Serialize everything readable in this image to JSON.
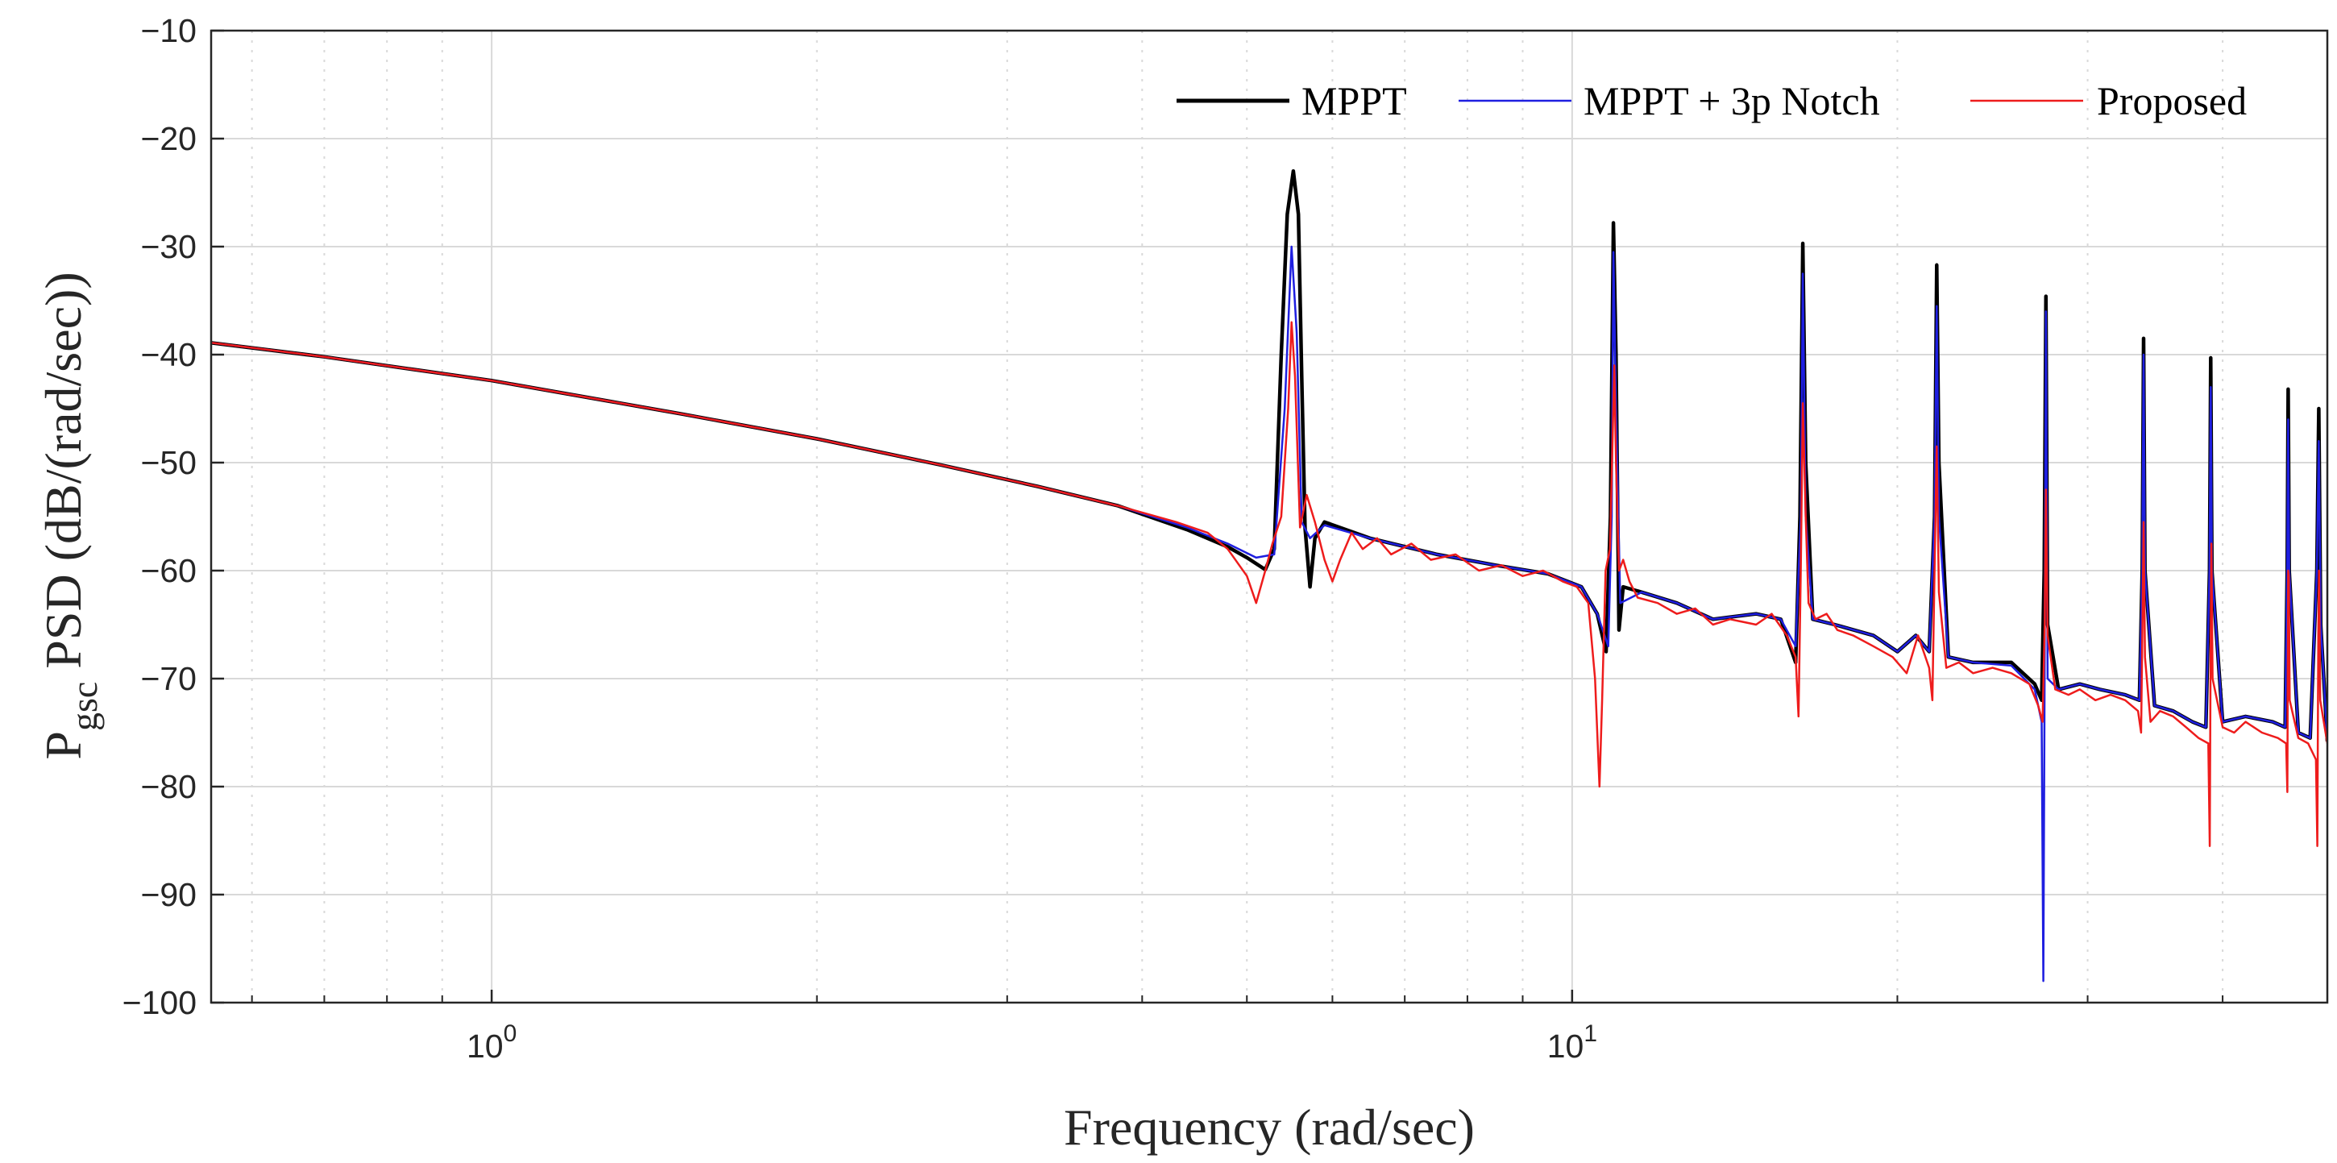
{
  "chart_data": {
    "type": "line",
    "title": "",
    "xlabel": "Frequency (rad/sec)",
    "ylabel": {
      "main": "P",
      "subscript": "gsc",
      "unit": " PSD (dB/(rad/sec))"
    },
    "xscale": "log",
    "xlim": [
      0.55,
      50
    ],
    "ylim": [
      -100,
      -10
    ],
    "grid": true,
    "x_ticks": [
      {
        "value": 1,
        "base": "10",
        "exp": "0"
      },
      {
        "value": 10,
        "base": "10",
        "exp": "1"
      }
    ],
    "y_ticks": [
      {
        "value": -10,
        "label": "−10"
      },
      {
        "value": -20,
        "label": "−20"
      },
      {
        "value": -30,
        "label": "−30"
      },
      {
        "value": -40,
        "label": "−40"
      },
      {
        "value": -50,
        "label": "−50"
      },
      {
        "value": -60,
        "label": "−60"
      },
      {
        "value": -70,
        "label": "−70"
      },
      {
        "value": -80,
        "label": "−80"
      },
      {
        "value": -90,
        "label": "−90"
      },
      {
        "value": -100,
        "label": "−100"
      }
    ],
    "legend_position": "top-right",
    "series": [
      {
        "name": "MPPT",
        "color": "#000000",
        "points": [
          [
            0.55,
            -38.9
          ],
          [
            0.7,
            -40.2
          ],
          [
            1.0,
            -42.4
          ],
          [
            1.5,
            -45.5
          ],
          [
            2.0,
            -47.8
          ],
          [
            2.6,
            -50.2
          ],
          [
            3.2,
            -52.2
          ],
          [
            3.8,
            -54.0
          ],
          [
            4.4,
            -56.2
          ],
          [
            4.8,
            -57.8
          ],
          [
            5.0,
            -58.8
          ],
          [
            5.2,
            -59.9
          ],
          [
            5.3,
            -58.0
          ],
          [
            5.38,
            -40.0
          ],
          [
            5.45,
            -27.0
          ],
          [
            5.52,
            -23.0
          ],
          [
            5.58,
            -27.0
          ],
          [
            5.62,
            -42.0
          ],
          [
            5.66,
            -56.0
          ],
          [
            5.72,
            -61.5
          ],
          [
            5.78,
            -57.0
          ],
          [
            5.9,
            -55.5
          ],
          [
            6.5,
            -57.0
          ],
          [
            7.5,
            -58.5
          ],
          [
            8.5,
            -59.5
          ],
          [
            9.5,
            -60.3
          ],
          [
            10.2,
            -61.5
          ],
          [
            10.55,
            -64.0
          ],
          [
            10.75,
            -67.5
          ],
          [
            10.85,
            -55.0
          ],
          [
            10.92,
            -27.8
          ],
          [
            10.98,
            -40.0
          ],
          [
            11.05,
            -65.5
          ],
          [
            11.15,
            -61.5
          ],
          [
            11.6,
            -62.0
          ],
          [
            12.5,
            -63.0
          ],
          [
            13.5,
            -64.5
          ],
          [
            14.8,
            -64.0
          ],
          [
            15.6,
            -64.5
          ],
          [
            16.1,
            -68.5
          ],
          [
            16.25,
            -55.0
          ],
          [
            16.35,
            -29.7
          ],
          [
            16.45,
            -50.0
          ],
          [
            16.7,
            -64.5
          ],
          [
            17.5,
            -65.0
          ],
          [
            19.0,
            -66.0
          ],
          [
            20.0,
            -67.5
          ],
          [
            20.8,
            -66.0
          ],
          [
            21.4,
            -67.5
          ],
          [
            21.65,
            -55.0
          ],
          [
            21.75,
            -31.7
          ],
          [
            21.85,
            -50.0
          ],
          [
            22.3,
            -68.0
          ],
          [
            23.5,
            -68.5
          ],
          [
            25.5,
            -68.5
          ],
          [
            26.8,
            -70.5
          ],
          [
            27.2,
            -72.0
          ],
          [
            27.35,
            -60.0
          ],
          [
            27.45,
            -34.6
          ],
          [
            27.55,
            -65.0
          ],
          [
            28.2,
            -71.0
          ],
          [
            29.5,
            -70.5
          ],
          [
            30.8,
            -71.0
          ],
          [
            32.5,
            -71.5
          ],
          [
            33.5,
            -72.0
          ],
          [
            33.7,
            -60.0
          ],
          [
            33.8,
            -38.5
          ],
          [
            33.9,
            -60.0
          ],
          [
            34.6,
            -72.5
          ],
          [
            36.0,
            -73.0
          ],
          [
            37.5,
            -74.0
          ],
          [
            38.6,
            -74.5
          ],
          [
            38.9,
            -60.0
          ],
          [
            39.0,
            -40.3
          ],
          [
            39.1,
            -60.0
          ],
          [
            40.0,
            -74.0
          ],
          [
            42.0,
            -73.5
          ],
          [
            44.5,
            -74.0
          ],
          [
            45.7,
            -74.5
          ],
          [
            45.9,
            -60.0
          ],
          [
            46.0,
            -43.2
          ],
          [
            46.1,
            -60.0
          ],
          [
            47.0,
            -75.0
          ],
          [
            48.2,
            -75.5
          ],
          [
            48.9,
            -60.0
          ],
          [
            49.1,
            -45.0
          ],
          [
            49.3,
            -65.0
          ],
          [
            50.0,
            -75.8
          ]
        ]
      },
      {
        "name": "MPPT + 3p Notch",
        "color": "#1f1fe0",
        "points": [
          [
            0.55,
            -38.9
          ],
          [
            0.7,
            -40.2
          ],
          [
            1.0,
            -42.4
          ],
          [
            1.5,
            -45.5
          ],
          [
            2.0,
            -47.8
          ],
          [
            2.6,
            -50.2
          ],
          [
            3.2,
            -52.2
          ],
          [
            3.8,
            -54.0
          ],
          [
            4.4,
            -56.0
          ],
          [
            4.8,
            -57.5
          ],
          [
            5.1,
            -58.8
          ],
          [
            5.3,
            -58.5
          ],
          [
            5.42,
            -45.0
          ],
          [
            5.5,
            -30.0
          ],
          [
            5.56,
            -38.0
          ],
          [
            5.62,
            -55.5
          ],
          [
            5.72,
            -57.0
          ],
          [
            5.9,
            -55.8
          ],
          [
            6.5,
            -57.0
          ],
          [
            7.5,
            -58.5
          ],
          [
            8.5,
            -59.5
          ],
          [
            9.5,
            -60.3
          ],
          [
            10.2,
            -61.5
          ],
          [
            10.55,
            -64.0
          ],
          [
            10.8,
            -67.0
          ],
          [
            10.88,
            -55.0
          ],
          [
            10.92,
            -30.5
          ],
          [
            10.98,
            -45.0
          ],
          [
            11.08,
            -63.0
          ],
          [
            11.6,
            -62.0
          ],
          [
            12.5,
            -63.0
          ],
          [
            13.5,
            -64.5
          ],
          [
            14.8,
            -64.0
          ],
          [
            15.6,
            -64.5
          ],
          [
            16.1,
            -67.0
          ],
          [
            16.28,
            -55.0
          ],
          [
            16.35,
            -32.5
          ],
          [
            16.45,
            -55.0
          ],
          [
            16.7,
            -64.5
          ],
          [
            17.5,
            -65.0
          ],
          [
            19.0,
            -66.0
          ],
          [
            20.0,
            -67.5
          ],
          [
            20.8,
            -66.0
          ],
          [
            21.4,
            -67.5
          ],
          [
            21.65,
            -55.0
          ],
          [
            21.75,
            -35.5
          ],
          [
            21.85,
            -55.0
          ],
          [
            22.3,
            -68.0
          ],
          [
            23.5,
            -68.5
          ],
          [
            25.5,
            -68.8
          ],
          [
            26.8,
            -71.0
          ],
          [
            27.2,
            -74.0
          ],
          [
            27.3,
            -98.0
          ],
          [
            27.36,
            -75.0
          ],
          [
            27.45,
            -36.0
          ],
          [
            27.55,
            -70.0
          ],
          [
            28.2,
            -71.0
          ],
          [
            29.5,
            -70.5
          ],
          [
            30.8,
            -71.0
          ],
          [
            32.5,
            -71.5
          ],
          [
            33.5,
            -72.0
          ],
          [
            33.7,
            -60.0
          ],
          [
            33.8,
            -40.0
          ],
          [
            33.9,
            -60.0
          ],
          [
            34.6,
            -72.5
          ],
          [
            36.0,
            -73.0
          ],
          [
            37.5,
            -74.0
          ],
          [
            38.6,
            -74.5
          ],
          [
            38.9,
            -60.0
          ],
          [
            39.0,
            -43.0
          ],
          [
            39.1,
            -60.0
          ],
          [
            40.0,
            -74.0
          ],
          [
            42.0,
            -73.5
          ],
          [
            44.5,
            -74.0
          ],
          [
            45.7,
            -74.5
          ],
          [
            45.9,
            -60.0
          ],
          [
            46.0,
            -46.0
          ],
          [
            46.1,
            -60.0
          ],
          [
            47.0,
            -75.0
          ],
          [
            48.2,
            -75.5
          ],
          [
            48.9,
            -60.0
          ],
          [
            49.1,
            -48.0
          ],
          [
            49.3,
            -65.0
          ],
          [
            50.0,
            -75.8
          ]
        ]
      },
      {
        "name": "Proposed",
        "color": "#ee1c1c",
        "points": [
          [
            0.55,
            -38.9
          ],
          [
            0.7,
            -40.2
          ],
          [
            1.0,
            -42.4
          ],
          [
            1.5,
            -45.5
          ],
          [
            2.0,
            -47.8
          ],
          [
            2.6,
            -50.2
          ],
          [
            3.2,
            -52.2
          ],
          [
            3.8,
            -54.0
          ],
          [
            4.3,
            -55.5
          ],
          [
            4.6,
            -56.5
          ],
          [
            4.8,
            -58.0
          ],
          [
            5.0,
            -60.5
          ],
          [
            5.1,
            -63.0
          ],
          [
            5.2,
            -60.0
          ],
          [
            5.28,
            -57.5
          ],
          [
            5.38,
            -55.0
          ],
          [
            5.46,
            -45.0
          ],
          [
            5.5,
            -37.0
          ],
          [
            5.54,
            -42.0
          ],
          [
            5.6,
            -56.0
          ],
          [
            5.68,
            -53.0
          ],
          [
            5.78,
            -55.5
          ],
          [
            5.9,
            -59.0
          ],
          [
            6.0,
            -61.0
          ],
          [
            6.1,
            -59.0
          ],
          [
            6.25,
            -56.5
          ],
          [
            6.4,
            -58.0
          ],
          [
            6.6,
            -57.0
          ],
          [
            6.8,
            -58.5
          ],
          [
            7.1,
            -57.5
          ],
          [
            7.4,
            -59.0
          ],
          [
            7.8,
            -58.5
          ],
          [
            8.2,
            -60.0
          ],
          [
            8.6,
            -59.5
          ],
          [
            9.0,
            -60.5
          ],
          [
            9.4,
            -60.0
          ],
          [
            9.8,
            -61.0
          ],
          [
            10.1,
            -61.5
          ],
          [
            10.35,
            -63.0
          ],
          [
            10.5,
            -70.0
          ],
          [
            10.6,
            -80.0
          ],
          [
            10.66,
            -72.0
          ],
          [
            10.74,
            -60.0
          ],
          [
            10.84,
            -58.0
          ],
          [
            10.9,
            -48.0
          ],
          [
            10.94,
            -41.0
          ],
          [
            10.98,
            -50.0
          ],
          [
            11.05,
            -60.0
          ],
          [
            11.15,
            -59.0
          ],
          [
            11.3,
            -61.0
          ],
          [
            11.5,
            -62.5
          ],
          [
            12.0,
            -63.0
          ],
          [
            12.5,
            -64.0
          ],
          [
            13.0,
            -63.5
          ],
          [
            13.5,
            -65.0
          ],
          [
            14.0,
            -64.5
          ],
          [
            14.8,
            -65.0
          ],
          [
            15.3,
            -64.0
          ],
          [
            15.8,
            -66.0
          ],
          [
            16.1,
            -68.0
          ],
          [
            16.2,
            -73.5
          ],
          [
            16.28,
            -60.0
          ],
          [
            16.35,
            -44.5
          ],
          [
            16.45,
            -55.0
          ],
          [
            16.55,
            -63.0
          ],
          [
            16.8,
            -64.5
          ],
          [
            17.2,
            -64.0
          ],
          [
            17.6,
            -65.5
          ],
          [
            18.2,
            -66.0
          ],
          [
            19.0,
            -67.0
          ],
          [
            19.8,
            -68.0
          ],
          [
            20.4,
            -69.5
          ],
          [
            20.9,
            -66.0
          ],
          [
            21.4,
            -69.0
          ],
          [
            21.55,
            -72.0
          ],
          [
            21.65,
            -60.0
          ],
          [
            21.75,
            -48.5
          ],
          [
            21.85,
            -62.0
          ],
          [
            22.2,
            -69.0
          ],
          [
            22.8,
            -68.5
          ],
          [
            23.5,
            -69.5
          ],
          [
            24.5,
            -69.0
          ],
          [
            25.5,
            -69.5
          ],
          [
            26.5,
            -70.5
          ],
          [
            27.0,
            -72.5
          ],
          [
            27.25,
            -74.0
          ],
          [
            27.38,
            -65.0
          ],
          [
            27.45,
            -52.5
          ],
          [
            27.55,
            -66.0
          ],
          [
            28.0,
            -71.0
          ],
          [
            28.8,
            -71.5
          ],
          [
            29.5,
            -71.0
          ],
          [
            30.5,
            -72.0
          ],
          [
            31.5,
            -71.5
          ],
          [
            32.5,
            -72.0
          ],
          [
            33.4,
            -73.0
          ],
          [
            33.62,
            -75.0
          ],
          [
            33.72,
            -65.0
          ],
          [
            33.8,
            -55.5
          ],
          [
            33.9,
            -68.0
          ],
          [
            34.3,
            -74.0
          ],
          [
            35.0,
            -73.0
          ],
          [
            36.0,
            -73.5
          ],
          [
            37.0,
            -74.5
          ],
          [
            38.0,
            -75.5
          ],
          [
            38.8,
            -76.0
          ],
          [
            38.92,
            -85.5
          ],
          [
            38.98,
            -70.0
          ],
          [
            39.05,
            -57.5
          ],
          [
            39.15,
            -70.0
          ],
          [
            40.0,
            -74.5
          ],
          [
            41.0,
            -75.0
          ],
          [
            42.0,
            -74.0
          ],
          [
            43.5,
            -75.0
          ],
          [
            45.0,
            -75.5
          ],
          [
            45.8,
            -76.0
          ],
          [
            45.92,
            -80.5
          ],
          [
            46.0,
            -60.0
          ],
          [
            46.06,
            -60.5
          ],
          [
            46.15,
            -72.0
          ],
          [
            47.0,
            -75.5
          ],
          [
            48.0,
            -76.0
          ],
          [
            48.8,
            -77.5
          ],
          [
            48.95,
            -85.5
          ],
          [
            49.05,
            -66.0
          ],
          [
            49.12,
            -60.0
          ],
          [
            49.25,
            -72.0
          ],
          [
            50.0,
            -76.0
          ]
        ]
      }
    ]
  }
}
